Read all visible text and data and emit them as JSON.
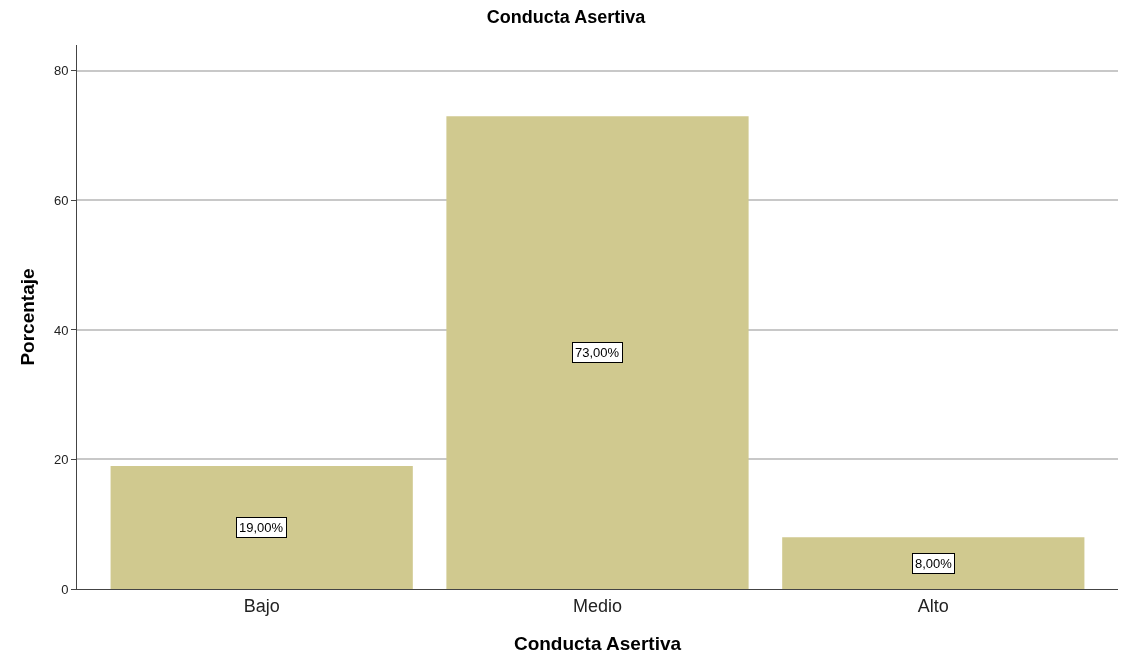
{
  "chart_data": {
    "type": "bar",
    "title": "Conducta Asertiva",
    "xlabel": "Conducta Asertiva",
    "ylabel": "Porcentaje",
    "categories": [
      "Bajo",
      "Medio",
      "Alto"
    ],
    "values": [
      19,
      73,
      8
    ],
    "value_labels": [
      "19,00%",
      "73,00%",
      "8,00%"
    ],
    "color": "#d0c98f",
    "ylim": [
      0,
      84
    ],
    "yticks": [
      0,
      20,
      40,
      60,
      80
    ],
    "grid": "y"
  }
}
